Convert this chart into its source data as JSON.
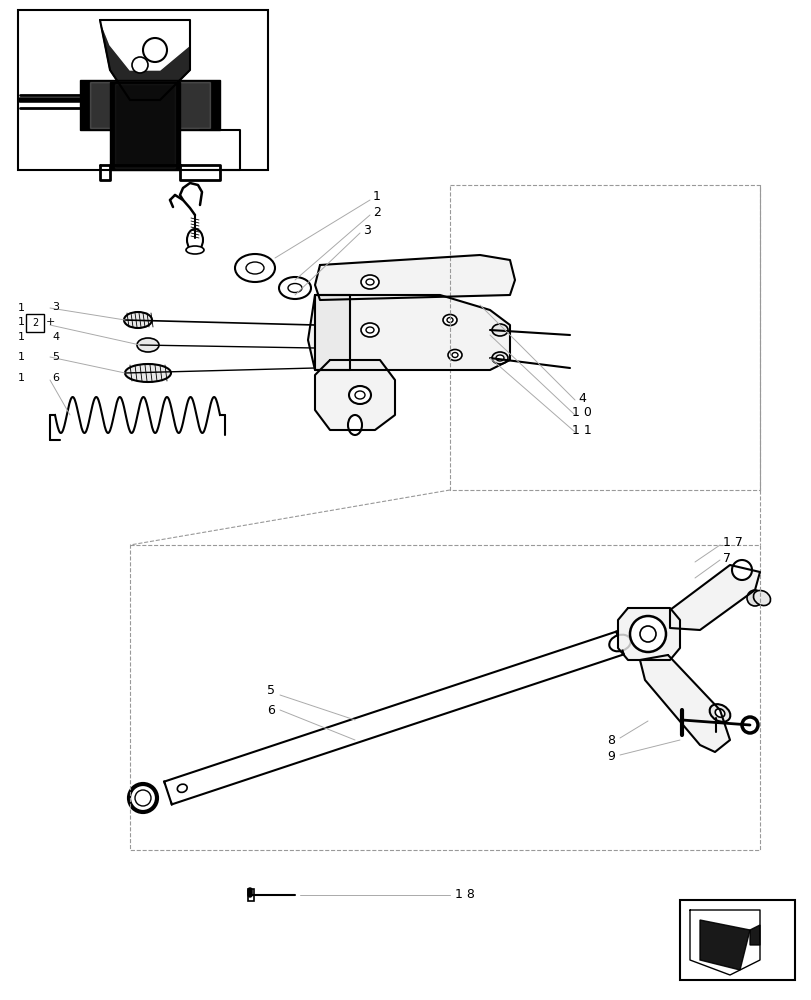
{
  "bg_color": "#ffffff",
  "lc": "#000000",
  "dc": "#999999",
  "fig_w": 8.12,
  "fig_h": 10.0,
  "dpi": 100
}
